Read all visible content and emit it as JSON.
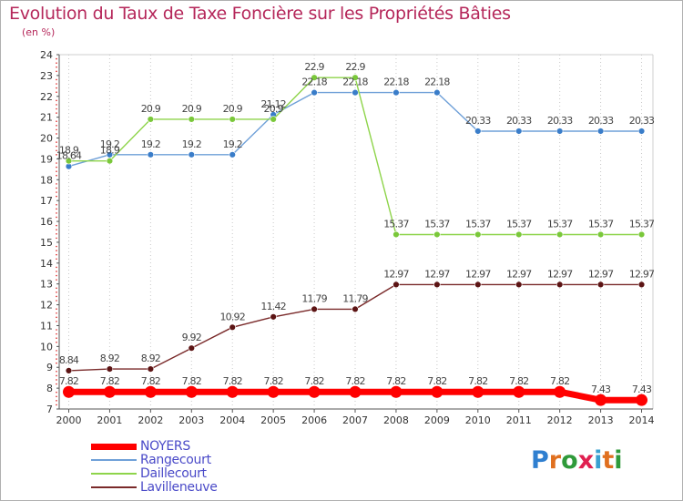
{
  "header": {
    "title": "Evolution du Taux de Taxe Foncière sur les Propriétés Bâties",
    "subtitle": "(en %)"
  },
  "logo": {
    "text": "Proxiti"
  },
  "chart_data": {
    "type": "line",
    "title": "Evolution du Taux de Taxe Foncière sur les Propriétés Bâties",
    "ylabel": "(en %)",
    "xlabel": "",
    "ylim": [
      7,
      24
    ],
    "yticks": [
      "7",
      "8",
      "9",
      "10",
      "11",
      "12",
      "13",
      "14",
      "15",
      "16",
      "17",
      "18",
      "19",
      "20",
      "21",
      "22",
      "23",
      "24"
    ],
    "grid": "vertical dotted",
    "legend": "bottom-left",
    "categories": [
      "2000",
      "2001",
      "2002",
      "2003",
      "2004",
      "2005",
      "2006",
      "2007",
      "2008",
      "2009",
      "2010",
      "2011",
      "2012",
      "2013",
      "2014"
    ],
    "series": [
      {
        "name": "NOYERS",
        "color": "#ff0000",
        "values": [
          7.82,
          7.82,
          7.82,
          7.82,
          7.82,
          7.82,
          7.82,
          7.82,
          7.82,
          7.82,
          7.82,
          7.82,
          7.82,
          7.43,
          7.43
        ],
        "labels": [
          "7.82",
          "7.82",
          "7.82",
          "7.82",
          "7.82",
          "7.82",
          "7.82",
          "7.82",
          "7.82",
          "7.82",
          "7.82",
          "7.82",
          "7.82",
          "7.43",
          "7.43"
        ]
      },
      {
        "name": "Rangecourt",
        "color": "#6fa0d8",
        "marker": "#3a7dc9",
        "values": [
          18.64,
          19.2,
          19.2,
          19.2,
          19.2,
          21.12,
          22.18,
          22.18,
          22.18,
          22.18,
          20.33,
          20.33,
          20.33,
          20.33,
          20.33
        ],
        "labels": [
          "18.64",
          "19.2",
          "19.2",
          "19.2",
          "19.2",
          "21.12",
          "22.18",
          "22.18",
          "22.18",
          "22.18",
          "20.33",
          "20.33",
          "20.33",
          "20.33",
          "20.33"
        ]
      },
      {
        "name": "Daillecourt",
        "color": "#8ed44a",
        "marker": "#7ac83a",
        "values": [
          18.9,
          18.9,
          20.9,
          20.9,
          20.9,
          20.9,
          22.9,
          22.9,
          15.37,
          15.37,
          15.37,
          15.37,
          15.37,
          15.37,
          15.37
        ],
        "labels": [
          "18.9",
          "18.9",
          "20.9",
          "20.9",
          "20.9",
          "20.9",
          "22.9",
          "22.9",
          "15.37",
          "15.37",
          "15.37",
          "15.37",
          "15.37",
          "15.37",
          "15.37"
        ]
      },
      {
        "name": "Lavilleneuve",
        "color": "#7a2a2a",
        "marker": "#5c1414",
        "values": [
          8.84,
          8.92,
          8.92,
          9.92,
          10.92,
          11.42,
          11.79,
          11.79,
          12.97,
          12.97,
          12.97,
          12.97,
          12.97,
          12.97,
          12.97
        ],
        "labels": [
          "8.84",
          "8.92",
          "8.92",
          "9.92",
          "10.92",
          "11.42",
          "11.79",
          "11.79",
          "12.97",
          "12.97",
          "12.97",
          "12.97",
          "12.97",
          "12.97",
          "12.97"
        ]
      }
    ]
  }
}
